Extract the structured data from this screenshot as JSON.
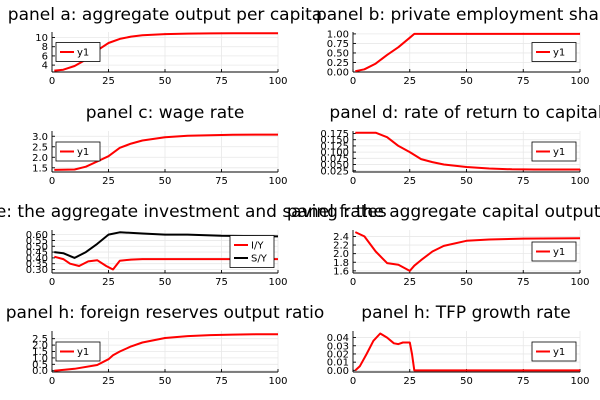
{
  "colors": {
    "red": "#ff0000",
    "black": "#000000"
  },
  "chart_data": [
    {
      "id": "a",
      "type": "line",
      "title": "panel a: aggregate output per capita",
      "xlim": [
        0,
        100
      ],
      "ylim": [
        2.5,
        11.2
      ],
      "xticks": [
        0,
        25,
        50,
        75,
        100
      ],
      "yticks": [
        4,
        6,
        8,
        10
      ],
      "legend": "left",
      "series": [
        {
          "name": "y1",
          "color": "#ff0000",
          "x": [
            1,
            5,
            10,
            15,
            20,
            25,
            30,
            35,
            40,
            50,
            60,
            70,
            80,
            90,
            100
          ],
          "y": [
            2.8,
            3.0,
            3.8,
            5.2,
            7.2,
            8.8,
            9.7,
            10.2,
            10.5,
            10.75,
            10.85,
            10.9,
            10.92,
            10.93,
            10.94
          ]
        }
      ]
    },
    {
      "id": "b",
      "type": "line",
      "title": "panel b: private employment share",
      "xlim": [
        0,
        100
      ],
      "ylim": [
        0,
        1.05
      ],
      "xticks": [
        0,
        25,
        50,
        75,
        100
      ],
      "yticks": [
        0.0,
        0.25,
        0.5,
        0.75,
        1.0
      ],
      "ytick_labels": [
        "0.00",
        "0.25",
        "0.50",
        "0.75",
        "1.00"
      ],
      "legend": "right",
      "series": [
        {
          "name": "y1",
          "color": "#ff0000",
          "x": [
            1,
            5,
            10,
            15,
            20,
            25,
            27,
            30,
            50,
            75,
            100
          ],
          "y": [
            0.02,
            0.07,
            0.22,
            0.45,
            0.65,
            0.9,
            1.0,
            1.0,
            1.0,
            1.0,
            1.0
          ]
        }
      ]
    },
    {
      "id": "c",
      "type": "line",
      "title": "panel c: wage rate",
      "xlim": [
        0,
        100
      ],
      "ylim": [
        1.3,
        3.25
      ],
      "xticks": [
        0,
        25,
        50,
        75,
        100
      ],
      "yticks": [
        1.5,
        2.0,
        2.5,
        3.0
      ],
      "ytick_labels": [
        "1.5",
        "2.0",
        "2.5",
        "3.0"
      ],
      "legend": "left",
      "series": [
        {
          "name": "y1",
          "color": "#ff0000",
          "x": [
            1,
            10,
            15,
            20,
            25,
            30,
            35,
            40,
            50,
            60,
            70,
            80,
            90,
            100
          ],
          "y": [
            1.4,
            1.42,
            1.55,
            1.8,
            2.05,
            2.45,
            2.65,
            2.8,
            2.95,
            3.02,
            3.05,
            3.07,
            3.08,
            3.08
          ]
        }
      ]
    },
    {
      "id": "d",
      "type": "line",
      "title": "panel d: rate of return to capital",
      "xlim": [
        0,
        100
      ],
      "ylim": [
        0.02,
        0.185
      ],
      "xticks": [
        0,
        25,
        50,
        75,
        100
      ],
      "yticks": [
        0.025,
        0.05,
        0.075,
        0.1,
        0.125,
        0.15,
        0.175
      ],
      "ytick_labels": [
        "0.025",
        "0.050",
        "0.075",
        "0.100",
        "0.125",
        "0.150",
        "0.175"
      ],
      "legend": "right",
      "series": [
        {
          "name": "y1",
          "color": "#ff0000",
          "x": [
            1,
            10,
            15,
            20,
            25,
            30,
            35,
            40,
            50,
            60,
            70,
            80,
            90,
            100
          ],
          "y": [
            0.178,
            0.178,
            0.16,
            0.125,
            0.1,
            0.072,
            0.06,
            0.05,
            0.04,
            0.034,
            0.031,
            0.03,
            0.03,
            0.03
          ]
        }
      ]
    },
    {
      "id": "e",
      "type": "line",
      "title": "panel e: the aggregate investment and saving rates",
      "xlim": [
        0,
        100
      ],
      "ylim": [
        0.27,
        0.64
      ],
      "xticks": [
        0,
        25,
        50,
        75,
        100
      ],
      "yticks": [
        0.3,
        0.35,
        0.4,
        0.45,
        0.5,
        0.55,
        0.6
      ],
      "ytick_labels": [
        "0.30",
        "0.35",
        "0.40",
        "0.45",
        "0.50",
        "0.55",
        "0.60"
      ],
      "legend": "right",
      "series": [
        {
          "name": "I/Y",
          "color": "#ff0000",
          "x": [
            1,
            5,
            8,
            12,
            16,
            20,
            24,
            27,
            30,
            35,
            40,
            50,
            60,
            75,
            100
          ],
          "y": [
            0.41,
            0.39,
            0.35,
            0.33,
            0.37,
            0.38,
            0.33,
            0.3,
            0.375,
            0.385,
            0.39,
            0.39,
            0.39,
            0.39,
            0.39
          ]
        },
        {
          "name": "S/Y",
          "color": "#000000",
          "x": [
            1,
            5,
            10,
            15,
            20,
            25,
            30,
            40,
            50,
            60,
            75,
            100
          ],
          "y": [
            0.45,
            0.44,
            0.4,
            0.45,
            0.52,
            0.6,
            0.62,
            0.61,
            0.6,
            0.6,
            0.59,
            0.585
          ]
        }
      ]
    },
    {
      "id": "f",
      "type": "line",
      "title": "panel f: the aggregate capital output ratio",
      "xlim": [
        0,
        100
      ],
      "ylim": [
        1.55,
        2.55
      ],
      "xticks": [
        0,
        25,
        50,
        75,
        100
      ],
      "yticks": [
        1.6,
        1.8,
        2.0,
        2.2,
        2.4
      ],
      "ytick_labels": [
        "1.6",
        "1.8",
        "2.0",
        "2.2",
        "2.4"
      ],
      "legend": "right",
      "series": [
        {
          "name": "y1",
          "color": "#ff0000",
          "x": [
            1,
            5,
            10,
            15,
            20,
            25,
            27,
            30,
            35,
            40,
            50,
            60,
            75,
            100
          ],
          "y": [
            2.5,
            2.4,
            2.05,
            1.78,
            1.74,
            1.6,
            1.72,
            1.85,
            2.05,
            2.18,
            2.3,
            2.33,
            2.35,
            2.36
          ]
        }
      ]
    },
    {
      "id": "g",
      "type": "line",
      "title": "panel h: foreign reserves output ratio",
      "xlim": [
        0,
        100
      ],
      "ylim": [
        -0.1,
        3.1
      ],
      "xticks": [
        0,
        25,
        50,
        75,
        100
      ],
      "yticks": [
        0,
        0.5,
        1.0,
        1.5,
        2.0,
        2.5
      ],
      "ytick_labels": [
        "0.0",
        "0.5",
        "1.0",
        "1.5",
        "2.0",
        "2.5"
      ],
      "legend": "left",
      "series": [
        {
          "name": "y1",
          "color": "#ff0000",
          "x": [
            1,
            10,
            20,
            25,
            27,
            30,
            35,
            40,
            50,
            60,
            70,
            80,
            90,
            100
          ],
          "y": [
            0.0,
            0.15,
            0.45,
            0.9,
            1.2,
            1.5,
            1.9,
            2.2,
            2.55,
            2.7,
            2.78,
            2.82,
            2.84,
            2.85
          ]
        }
      ]
    },
    {
      "id": "h",
      "type": "line",
      "title": "panel h: TFP growth rate",
      "xlim": [
        0,
        100
      ],
      "ylim": [
        -0.002,
        0.048
      ],
      "xticks": [
        0,
        25,
        50,
        75,
        100
      ],
      "yticks": [
        0,
        0.01,
        0.02,
        0.03,
        0.04
      ],
      "ytick_labels": [
        "0.00",
        "0.01",
        "0.02",
        "0.03",
        "0.04"
      ],
      "legend": "right",
      "series": [
        {
          "name": "y1",
          "color": "#ff0000",
          "x": [
            1,
            3,
            6,
            9,
            12,
            15,
            18,
            20,
            22,
            25,
            26,
            27,
            30,
            50,
            75,
            100
          ],
          "y": [
            0.0,
            0.005,
            0.02,
            0.036,
            0.045,
            0.04,
            0.033,
            0.032,
            0.034,
            0.034,
            0.02,
            0.0,
            0.0,
            0.0,
            0.0,
            0.0
          ]
        }
      ]
    }
  ]
}
